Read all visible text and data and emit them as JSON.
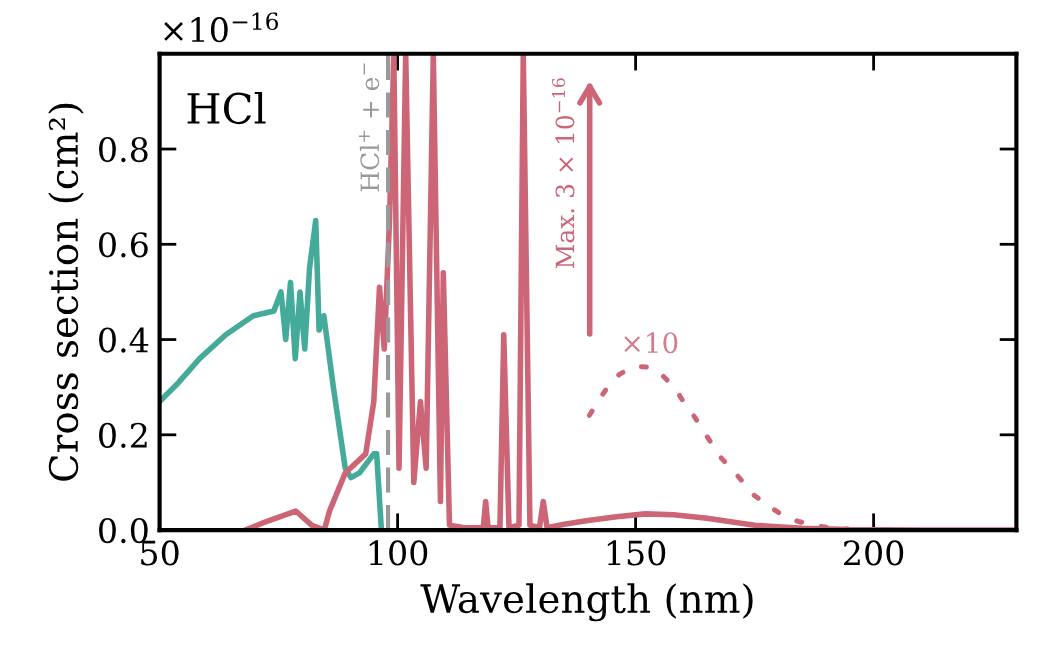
{
  "chart_data": {
    "type": "line",
    "xlabel": "Wavelength (nm)",
    "ylabel": "Cross section (cm²)",
    "xlim": [
      50,
      230
    ],
    "xticks": [
      50,
      100,
      150,
      200
    ],
    "ylim": [
      0,
      1
    ],
    "yticks": [
      {
        "value": 0,
        "label": "0.0"
      },
      0.2,
      0.4,
      0.6,
      0.8
    ],
    "grid": false,
    "marker": "none",
    "series": [
      {
        "color": "#44aa99",
        "line_style": "solid",
        "x": [
          50,
          54,
          58.4,
          63.9,
          69.7,
          74,
          75.5,
          76.5,
          77.5,
          78.5,
          79.5,
          80.5,
          81.5,
          82.8,
          83.5,
          84.5,
          86.5,
          89,
          90.2,
          92,
          95,
          95.6,
          96.6
        ],
        "values": [
          0.27,
          0.31,
          0.36,
          0.41,
          0.45,
          0.46,
          0.5,
          0.4,
          0.52,
          0.36,
          0.5,
          0.38,
          0.55,
          0.65,
          0.42,
          0.45,
          0.3,
          0.13,
          0.11,
          0.12,
          0.16,
          0.16,
          0
        ]
      },
      {
        "color": "#cc6677",
        "line_style": "solid",
        "x": [
          68,
          73,
          78.6,
          82,
          84.6,
          85.7,
          89,
          93.3,
          95,
          96.2,
          97.2,
          98.3,
          99.2,
          100.3,
          101.7,
          103.4,
          104.8,
          106,
          107.5,
          109,
          109.6,
          110.9,
          114,
          118,
          118.5,
          119,
          121.5,
          122.3,
          123.4,
          125.5,
          126.4,
          127.8,
          129.8,
          130.6,
          131.4,
          135,
          140,
          146,
          152,
          158,
          165,
          175,
          185,
          195,
          210,
          230
        ],
        "values": [
          0,
          0.02,
          0.04,
          0.01,
          0,
          0.04,
          0.12,
          0.16,
          0.27,
          0.51,
          0.38,
          0.65,
          1.0,
          0.13,
          1.0,
          0.1,
          0.27,
          0.13,
          1.0,
          0.06,
          0.54,
          0.01,
          0.005,
          0.005,
          0.06,
          0.005,
          0.005,
          0.41,
          0.005,
          0.01,
          1.0,
          0.01,
          0.005,
          0.06,
          0.005,
          0.012,
          0.02,
          0.028,
          0.034,
          0.032,
          0.025,
          0.01,
          0.004,
          0.001,
          0,
          0
        ]
      },
      {
        "color": "#cc6677",
        "line_style": "dotted",
        "x": [
          140.3,
          142.1,
          144.1,
          146.6,
          149.7,
          152.9,
          155.5,
          158.3,
          160.2,
          162.3,
          166,
          168.1,
          170.5,
          174.9,
          177.7,
          180.8,
          184.2,
          187.5,
          191.2,
          194.5
        ],
        "values": [
          0.241,
          0.27,
          0.3,
          0.327,
          0.344,
          0.342,
          0.326,
          0.298,
          0.267,
          0.239,
          0.181,
          0.15,
          0.125,
          0.073,
          0.052,
          0.032,
          0.018,
          0.01,
          0.004,
          0.002
        ]
      }
    ],
    "ref_lines": [
      {
        "axis": "x",
        "value": 98,
        "label": "HCl$^{+}$ + e$^{−}$",
        "color": "#999999",
        "line_style": "dashed"
      }
    ],
    "annotations": [
      "HCl",
      "×10$^{−16}$",
      "Max. 3 × 10$^{−16}$",
      {
        "text": "×10",
        "x": 153,
        "y": 0.36
      }
    ]
  }
}
